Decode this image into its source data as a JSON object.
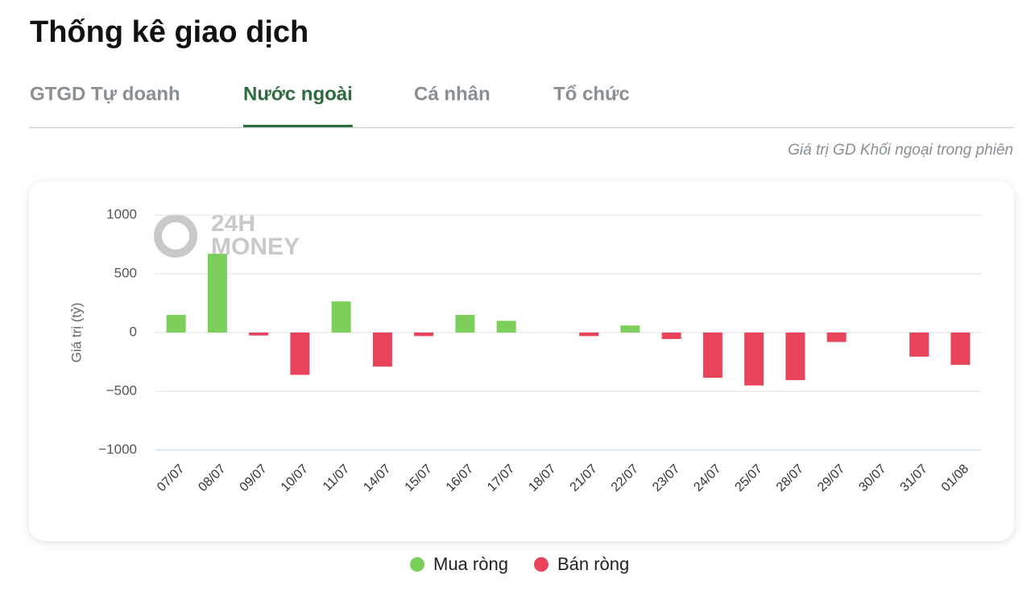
{
  "header": {
    "title": "Thống kê giao dịch"
  },
  "tabs": [
    {
      "label": "GTGD Tự doanh"
    },
    {
      "label": "Nước ngoài",
      "active": true
    },
    {
      "label": "Cá nhân"
    },
    {
      "label": "Tổ chức"
    }
  ],
  "subtitle": "Giá trị GD Khối ngoại trong phiên",
  "chart_data": {
    "type": "bar",
    "watermark": [
      "24H",
      "MONEY"
    ],
    "y_label": "Giá trị (tỷ)",
    "categories": [
      "07/07",
      "08/07",
      "09/07",
      "10/07",
      "11/07",
      "14/07",
      "15/07",
      "16/07",
      "17/07",
      "18/07",
      "21/07",
      "22/07",
      "23/07",
      "24/07",
      "25/07",
      "28/07",
      "29/07",
      "30/07",
      "31/07",
      "01/08"
    ],
    "series": [
      {
        "name": "Mua ròng",
        "color": "#7ccf5a",
        "values": [
          150,
          670,
          null,
          null,
          265,
          null,
          null,
          150,
          100,
          null,
          null,
          60,
          null,
          null,
          null,
          null,
          null,
          null,
          null,
          null
        ]
      },
      {
        "name": "Bán ròng",
        "color": "#e8435a",
        "values": [
          null,
          null,
          -25,
          -360,
          null,
          -290,
          -30,
          null,
          null,
          null,
          -30,
          null,
          -55,
          -385,
          -450,
          -405,
          -80,
          null,
          -205,
          -275
        ]
      }
    ],
    "ylim": [
      -1000,
      1000
    ],
    "yticks": [
      {
        "value": -1000,
        "label": "−1000"
      },
      {
        "value": -500,
        "label": "−500"
      },
      0,
      500,
      1000
    ],
    "grid": true,
    "legend": "bottom"
  }
}
